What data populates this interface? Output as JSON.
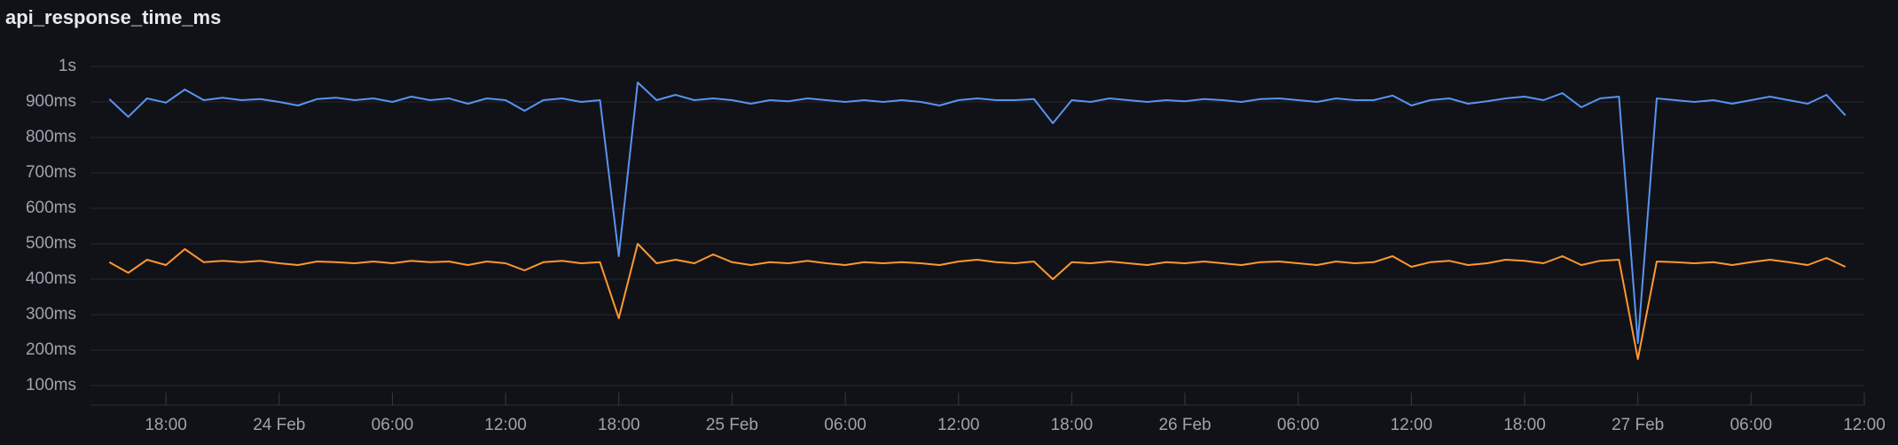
{
  "chart_data": {
    "type": "line",
    "title": "api_response_time_ms",
    "x": [
      "23 Feb 15:00",
      "23 Feb 16:00",
      "23 Feb 17:00",
      "23 Feb 18:00",
      "23 Feb 19:00",
      "23 Feb 20:00",
      "23 Feb 21:00",
      "23 Feb 22:00",
      "23 Feb 23:00",
      "24 Feb 00:00",
      "24 Feb 01:00",
      "24 Feb 02:00",
      "24 Feb 03:00",
      "24 Feb 04:00",
      "24 Feb 05:00",
      "24 Feb 06:00",
      "24 Feb 07:00",
      "24 Feb 08:00",
      "24 Feb 09:00",
      "24 Feb 10:00",
      "24 Feb 11:00",
      "24 Feb 12:00",
      "24 Feb 13:00",
      "24 Feb 14:00",
      "24 Feb 15:00",
      "24 Feb 16:00",
      "24 Feb 17:00",
      "24 Feb 18:00",
      "24 Feb 19:00",
      "24 Feb 20:00",
      "24 Feb 21:00",
      "24 Feb 22:00",
      "24 Feb 23:00",
      "25 Feb 00:00",
      "25 Feb 01:00",
      "25 Feb 02:00",
      "25 Feb 03:00",
      "25 Feb 04:00",
      "25 Feb 05:00",
      "25 Feb 06:00",
      "25 Feb 07:00",
      "25 Feb 08:00",
      "25 Feb 09:00",
      "25 Feb 10:00",
      "25 Feb 11:00",
      "25 Feb 12:00",
      "25 Feb 13:00",
      "25 Feb 14:00",
      "25 Feb 15:00",
      "25 Feb 16:00",
      "25 Feb 17:00",
      "25 Feb 18:00",
      "25 Feb 19:00",
      "25 Feb 20:00",
      "25 Feb 21:00",
      "25 Feb 22:00",
      "25 Feb 23:00",
      "26 Feb 00:00",
      "26 Feb 01:00",
      "26 Feb 02:00",
      "26 Feb 03:00",
      "26 Feb 04:00",
      "26 Feb 05:00",
      "26 Feb 06:00",
      "26 Feb 07:00",
      "26 Feb 08:00",
      "26 Feb 09:00",
      "26 Feb 10:00",
      "26 Feb 11:00",
      "26 Feb 12:00",
      "26 Feb 13:00",
      "26 Feb 14:00",
      "26 Feb 15:00",
      "26 Feb 16:00",
      "26 Feb 17:00",
      "26 Feb 18:00",
      "26 Feb 19:00",
      "26 Feb 20:00",
      "26 Feb 21:00",
      "26 Feb 22:00",
      "26 Feb 23:00",
      "27 Feb 00:00",
      "27 Feb 01:00",
      "27 Feb 02:00",
      "27 Feb 03:00",
      "27 Feb 04:00",
      "27 Feb 05:00",
      "27 Feb 06:00",
      "27 Feb 07:00",
      "27 Feb 08:00",
      "27 Feb 09:00",
      "27 Feb 10:00",
      "27 Feb 11:00"
    ],
    "series": [
      {
        "color": "#5794f2",
        "values": [
          908,
          858,
          910,
          898,
          935,
          905,
          912,
          905,
          908,
          900,
          890,
          908,
          912,
          905,
          910,
          900,
          915,
          905,
          910,
          895,
          910,
          905,
          875,
          905,
          910,
          900,
          905,
          465,
          955,
          905,
          920,
          905,
          910,
          905,
          895,
          905,
          902,
          910,
          905,
          900,
          905,
          900,
          905,
          900,
          890,
          905,
          910,
          905,
          905,
          908,
          840,
          905,
          900,
          910,
          905,
          900,
          905,
          902,
          908,
          905,
          900,
          908,
          910,
          905,
          900,
          910,
          905,
          905,
          918,
          890,
          905,
          910,
          895,
          902,
          910,
          915,
          905,
          925,
          885,
          910,
          915,
          220,
          910,
          905,
          900,
          905,
          895,
          905,
          915,
          905,
          895,
          920,
          862
        ]
      },
      {
        "color": "#ff9830",
        "values": [
          448,
          418,
          455,
          440,
          485,
          448,
          452,
          448,
          452,
          445,
          440,
          450,
          448,
          445,
          450,
          445,
          452,
          448,
          450,
          440,
          450,
          445,
          425,
          448,
          452,
          445,
          448,
          290,
          500,
          445,
          455,
          445,
          470,
          448,
          440,
          448,
          445,
          452,
          445,
          440,
          448,
          445,
          448,
          445,
          440,
          450,
          455,
          448,
          445,
          450,
          400,
          448,
          445,
          450,
          445,
          440,
          448,
          445,
          450,
          445,
          440,
          448,
          450,
          445,
          440,
          450,
          445,
          448,
          465,
          435,
          448,
          452,
          440,
          445,
          455,
          452,
          445,
          465,
          440,
          452,
          455,
          175,
          450,
          448,
          445,
          448,
          440,
          448,
          455,
          448,
          440,
          460,
          435
        ]
      }
    ],
    "xlim": [
      "23 Feb 14:00",
      "27 Feb 12:00"
    ],
    "xticks": [
      {
        "value": "23 Feb 18:00",
        "label": "18:00"
      },
      {
        "value": "24 Feb 00:00",
        "label": "24 Feb"
      },
      {
        "value": "24 Feb 06:00",
        "label": "06:00"
      },
      {
        "value": "24 Feb 12:00",
        "label": "12:00"
      },
      {
        "value": "24 Feb 18:00",
        "label": "18:00"
      },
      {
        "value": "25 Feb 00:00",
        "label": "25 Feb"
      },
      {
        "value": "25 Feb 06:00",
        "label": "06:00"
      },
      {
        "value": "25 Feb 12:00",
        "label": "12:00"
      },
      {
        "value": "25 Feb 18:00",
        "label": "18:00"
      },
      {
        "value": "26 Feb 00:00",
        "label": "26 Feb"
      },
      {
        "value": "26 Feb 06:00",
        "label": "06:00"
      },
      {
        "value": "26 Feb 12:00",
        "label": "12:00"
      },
      {
        "value": "26 Feb 18:00",
        "label": "18:00"
      },
      {
        "value": "27 Feb 00:00",
        "label": "27 Feb"
      },
      {
        "value": "27 Feb 06:00",
        "label": "06:00"
      },
      {
        "value": "27 Feb 12:00",
        "label": "12:00"
      }
    ],
    "ylim": [
      45,
      1000
    ],
    "yticks": [
      {
        "value": 100,
        "label": "100ms"
      },
      {
        "value": 200,
        "label": "200ms"
      },
      {
        "value": 300,
        "label": "300ms"
      },
      {
        "value": 400,
        "label": "400ms"
      },
      {
        "value": 500,
        "label": "500ms"
      },
      {
        "value": 600,
        "label": "600ms"
      },
      {
        "value": 700,
        "label": "700ms"
      },
      {
        "value": 800,
        "label": "800ms"
      },
      {
        "value": 900,
        "label": "900ms"
      },
      {
        "value": 1000,
        "label": "1s"
      }
    ],
    "grid": true
  }
}
